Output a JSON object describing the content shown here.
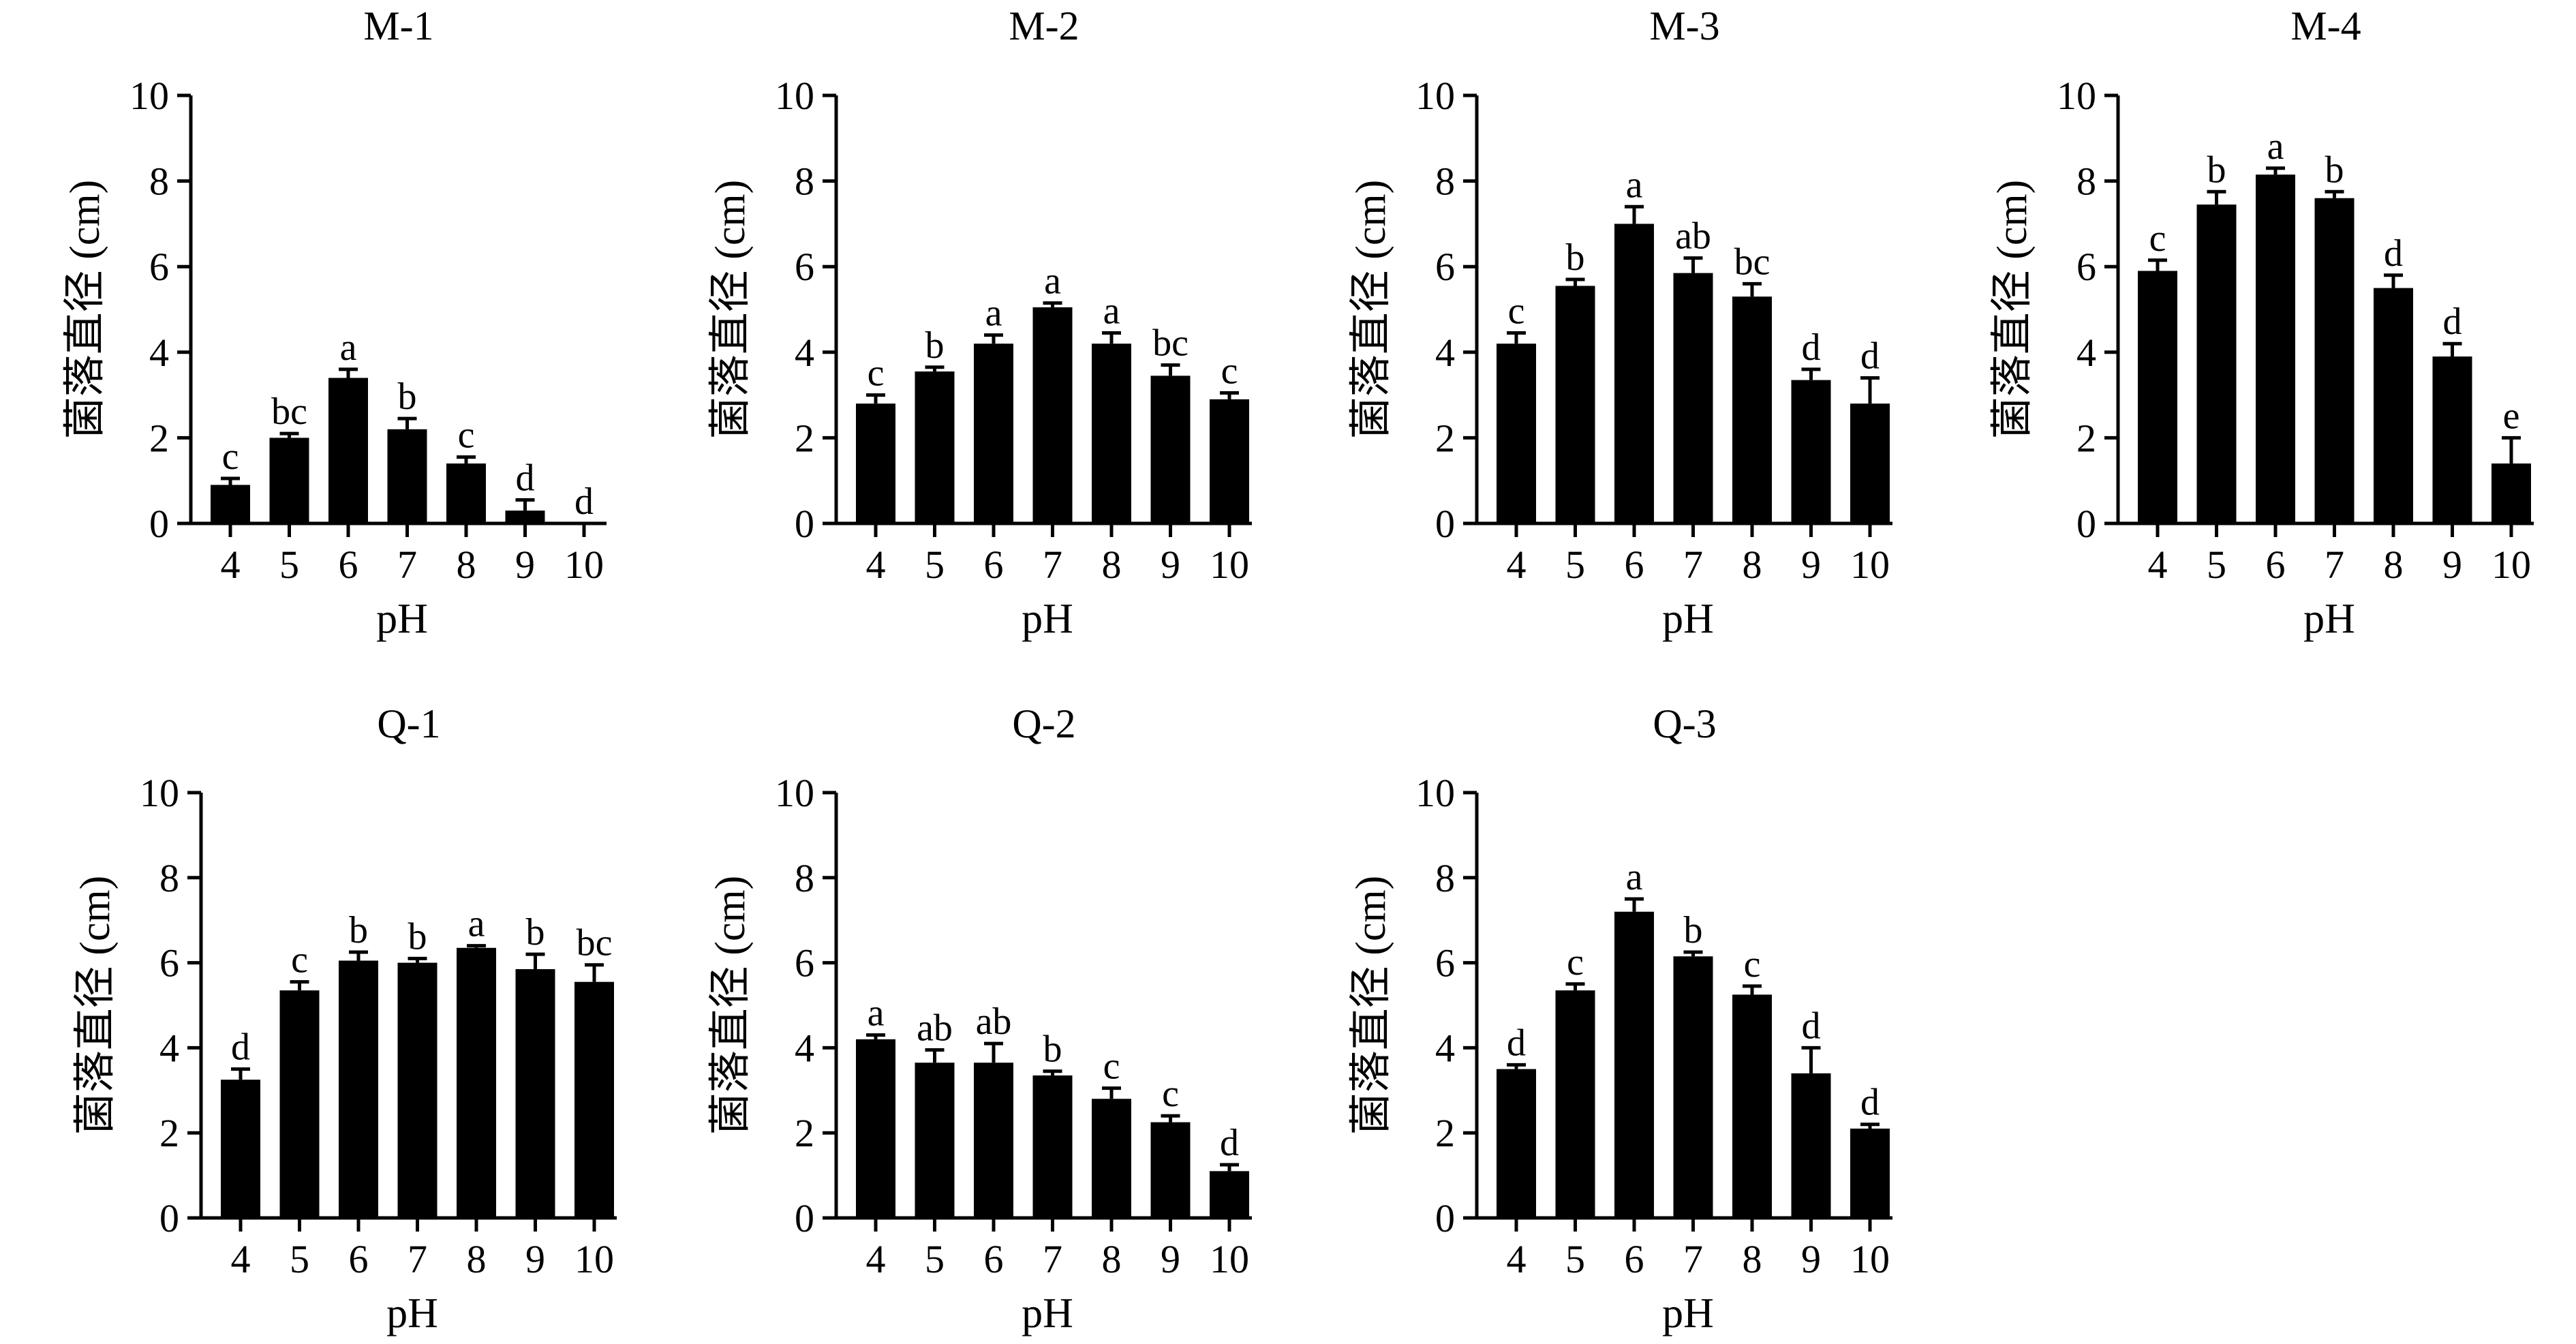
{
  "chart_data": [
    {
      "type": "bar",
      "title": "M-1",
      "xlabel": "pH",
      "ylabel": "菌落直径 (cm)",
      "ylim": [
        0,
        10
      ],
      "yticks": [
        0,
        2,
        4,
        6,
        8,
        10
      ],
      "categories": [
        "4",
        "5",
        "6",
        "7",
        "8",
        "9",
        "10"
      ],
      "values": [
        0.9,
        2.0,
        3.4,
        2.2,
        1.4,
        0.3,
        0.0
      ],
      "errors": [
        0.15,
        0.1,
        0.2,
        0.25,
        0.15,
        0.25,
        0.0
      ],
      "significance": [
        "c",
        "bc",
        "a",
        "b",
        "c",
        "d",
        "d"
      ]
    },
    {
      "type": "bar",
      "title": "M-2",
      "xlabel": "pH",
      "ylabel": "菌落直径 (cm)",
      "ylim": [
        0,
        10
      ],
      "yticks": [
        0,
        2,
        4,
        6,
        8,
        10
      ],
      "categories": [
        "4",
        "5",
        "6",
        "7",
        "8",
        "9",
        "10"
      ],
      "values": [
        2.8,
        3.55,
        4.2,
        5.05,
        4.2,
        3.45,
        2.9
      ],
      "errors": [
        0.2,
        0.1,
        0.2,
        0.1,
        0.25,
        0.25,
        0.15
      ],
      "significance": [
        "c",
        "b",
        "a",
        "a",
        "a",
        "bc",
        "c"
      ]
    },
    {
      "type": "bar",
      "title": "M-3",
      "xlabel": "pH",
      "ylabel": "菌落直径 (cm)",
      "ylim": [
        0,
        10
      ],
      "yticks": [
        0,
        2,
        4,
        6,
        8,
        10
      ],
      "categories": [
        "4",
        "5",
        "6",
        "7",
        "8",
        "9",
        "10"
      ],
      "values": [
        4.2,
        5.55,
        7.0,
        5.85,
        5.3,
        3.35,
        2.8
      ],
      "errors": [
        0.25,
        0.15,
        0.4,
        0.35,
        0.3,
        0.25,
        0.6
      ],
      "significance": [
        "c",
        "b",
        "a",
        "ab",
        "bc",
        "d",
        "d"
      ]
    },
    {
      "type": "bar",
      "title": "M-4",
      "xlabel": "pH",
      "ylabel": "菌落直径 (cm)",
      "ylim": [
        0,
        10
      ],
      "yticks": [
        0,
        2,
        4,
        6,
        8,
        10
      ],
      "categories": [
        "4",
        "5",
        "6",
        "7",
        "8",
        "9",
        "10"
      ],
      "values": [
        5.9,
        7.45,
        8.15,
        7.6,
        5.5,
        3.9,
        1.4
      ],
      "errors": [
        0.25,
        0.3,
        0.15,
        0.15,
        0.3,
        0.3,
        0.6
      ],
      "significance": [
        "c",
        "b",
        "a",
        "b",
        "d",
        "d",
        "e"
      ]
    },
    {
      "type": "bar",
      "title": "Q-1",
      "xlabel": "pH",
      "ylabel": "菌落直径 (cm)",
      "ylim": [
        0,
        10
      ],
      "yticks": [
        0,
        2,
        4,
        6,
        8,
        10
      ],
      "categories": [
        "4",
        "5",
        "6",
        "7",
        "8",
        "9",
        "10"
      ],
      "values": [
        3.25,
        5.35,
        6.05,
        6.0,
        6.35,
        5.85,
        5.55
      ],
      "errors": [
        0.25,
        0.2,
        0.2,
        0.1,
        0.05,
        0.35,
        0.4
      ],
      "significance": [
        "d",
        "c",
        "b",
        "b",
        "a",
        "b",
        "bc"
      ]
    },
    {
      "type": "bar",
      "title": "Q-2",
      "xlabel": "pH",
      "ylabel": "菌落直径 (cm)",
      "ylim": [
        0,
        10
      ],
      "yticks": [
        0,
        2,
        4,
        6,
        8,
        10
      ],
      "categories": [
        "4",
        "5",
        "6",
        "7",
        "8",
        "9",
        "10"
      ],
      "values": [
        4.2,
        3.65,
        3.65,
        3.35,
        2.8,
        2.25,
        1.1
      ],
      "errors": [
        0.1,
        0.3,
        0.45,
        0.1,
        0.25,
        0.15,
        0.15
      ],
      "significance": [
        "a",
        "ab",
        "ab",
        "b",
        "c",
        "c",
        "d"
      ]
    },
    {
      "type": "bar",
      "title": "Q-3",
      "xlabel": "pH",
      "ylabel": "菌落直径 (cm)",
      "ylim": [
        0,
        10
      ],
      "yticks": [
        0,
        2,
        4,
        6,
        8,
        10
      ],
      "categories": [
        "4",
        "5",
        "6",
        "7",
        "8",
        "9",
        "10"
      ],
      "values": [
        3.5,
        5.35,
        7.2,
        6.15,
        5.25,
        3.4,
        2.1
      ],
      "errors": [
        0.1,
        0.15,
        0.3,
        0.1,
        0.2,
        0.6,
        0.1
      ],
      "significance": [
        "d",
        "c",
        "a",
        "b",
        "c",
        "d",
        "d"
      ]
    }
  ]
}
